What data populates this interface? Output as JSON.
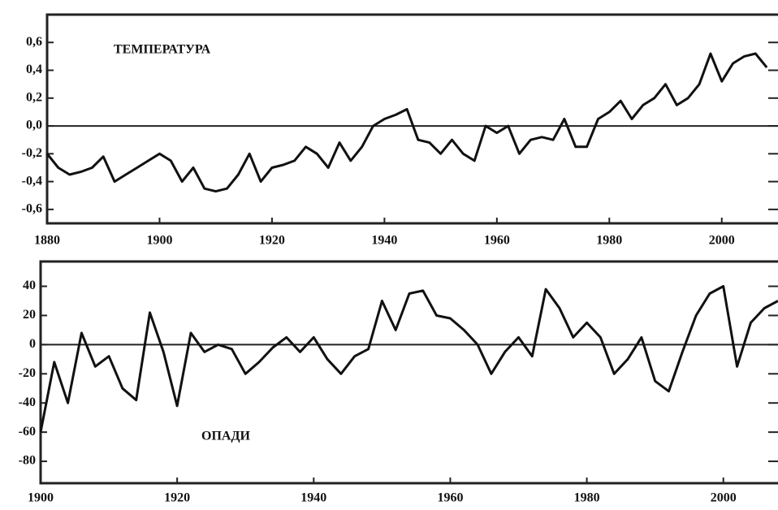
{
  "chart_data": [
    {
      "type": "line",
      "label": "ТЕМПЕРАТУРА",
      "x": [
        1880,
        1882,
        1884,
        1886,
        1888,
        1890,
        1892,
        1894,
        1896,
        1898,
        1900,
        1902,
        1904,
        1906,
        1908,
        1910,
        1912,
        1914,
        1916,
        1918,
        1920,
        1922,
        1924,
        1926,
        1928,
        1930,
        1932,
        1934,
        1936,
        1938,
        1940,
        1942,
        1944,
        1946,
        1948,
        1950,
        1952,
        1954,
        1956,
        1958,
        1960,
        1962,
        1964,
        1966,
        1968,
        1970,
        1972,
        1974,
        1976,
        1978,
        1980,
        1982,
        1984,
        1986,
        1988,
        1990,
        1992,
        1994,
        1996,
        1998,
        2000,
        2002,
        2004,
        2006,
        2008
      ],
      "values": [
        -0.2,
        -0.3,
        -0.35,
        -0.33,
        -0.3,
        -0.22,
        -0.4,
        -0.35,
        -0.3,
        -0.25,
        -0.2,
        -0.25,
        -0.4,
        -0.3,
        -0.45,
        -0.47,
        -0.45,
        -0.35,
        -0.2,
        -0.4,
        -0.3,
        -0.28,
        -0.25,
        -0.15,
        -0.2,
        -0.3,
        -0.12,
        -0.25,
        -0.15,
        0.0,
        0.05,
        0.08,
        0.12,
        -0.1,
        -0.12,
        -0.2,
        -0.1,
        -0.2,
        -0.25,
        0.0,
        -0.05,
        0.0,
        -0.2,
        -0.1,
        -0.08,
        -0.1,
        0.05,
        -0.15,
        -0.15,
        0.05,
        0.1,
        0.18,
        0.05,
        0.15,
        0.2,
        0.3,
        0.15,
        0.2,
        0.3,
        0.52,
        0.32,
        0.45,
        0.5,
        0.52,
        0.42
      ],
      "color": "#111111",
      "reference_line": 0,
      "xlim": [
        1880,
        2010
      ],
      "xticks": [
        1880,
        1900,
        1920,
        1940,
        1960,
        1980,
        2000
      ],
      "ylim": [
        -0.7,
        0.8
      ],
      "yticks": [
        {
          "value": 0.6,
          "label": "0,6"
        },
        {
          "value": 0.4,
          "label": "0,4"
        },
        {
          "value": 0.2,
          "label": "0,2"
        },
        {
          "value": 0.0,
          "label": "0,0"
        },
        {
          "value": -0.2,
          "label": "-0,2"
        },
        {
          "value": -0.4,
          "label": "-0,4"
        },
        {
          "value": -0.6,
          "label": "-0,6"
        }
      ]
    },
    {
      "type": "line",
      "label": "ОПАДИ",
      "x": [
        1900,
        1902,
        1904,
        1906,
        1908,
        1910,
        1912,
        1914,
        1916,
        1918,
        1920,
        1922,
        1924,
        1926,
        1928,
        1930,
        1932,
        1934,
        1936,
        1938,
        1940,
        1942,
        1944,
        1946,
        1948,
        1950,
        1952,
        1954,
        1956,
        1958,
        1960,
        1962,
        1964,
        1966,
        1968,
        1970,
        1972,
        1974,
        1976,
        1978,
        1980,
        1982,
        1984,
        1986,
        1988,
        1990,
        1992,
        1994,
        1996,
        1998,
        2000,
        2002,
        2004,
        2006,
        2008
      ],
      "values": [
        -60,
        -12,
        -40,
        8,
        -15,
        -8,
        -30,
        -38,
        22,
        -5,
        -42,
        8,
        -5,
        0,
        -3,
        -20,
        -12,
        -2,
        5,
        -5,
        5,
        -10,
        -20,
        -8,
        -3,
        30,
        10,
        35,
        37,
        20,
        18,
        10,
        0,
        -20,
        -5,
        5,
        -8,
        38,
        25,
        5,
        15,
        5,
        -20,
        -10,
        5,
        -25,
        -32,
        -5,
        20,
        35,
        40,
        -15,
        15,
        25,
        30
      ],
      "color": "#111111",
      "reference_line": 0,
      "xlim": [
        1900,
        2008
      ],
      "xticks": [
        1900,
        1920,
        1940,
        1960,
        1980,
        2000
      ],
      "ylim": [
        -95,
        57
      ],
      "yticks": [
        40,
        20,
        0,
        -20,
        -40,
        -60,
        -80
      ]
    }
  ]
}
